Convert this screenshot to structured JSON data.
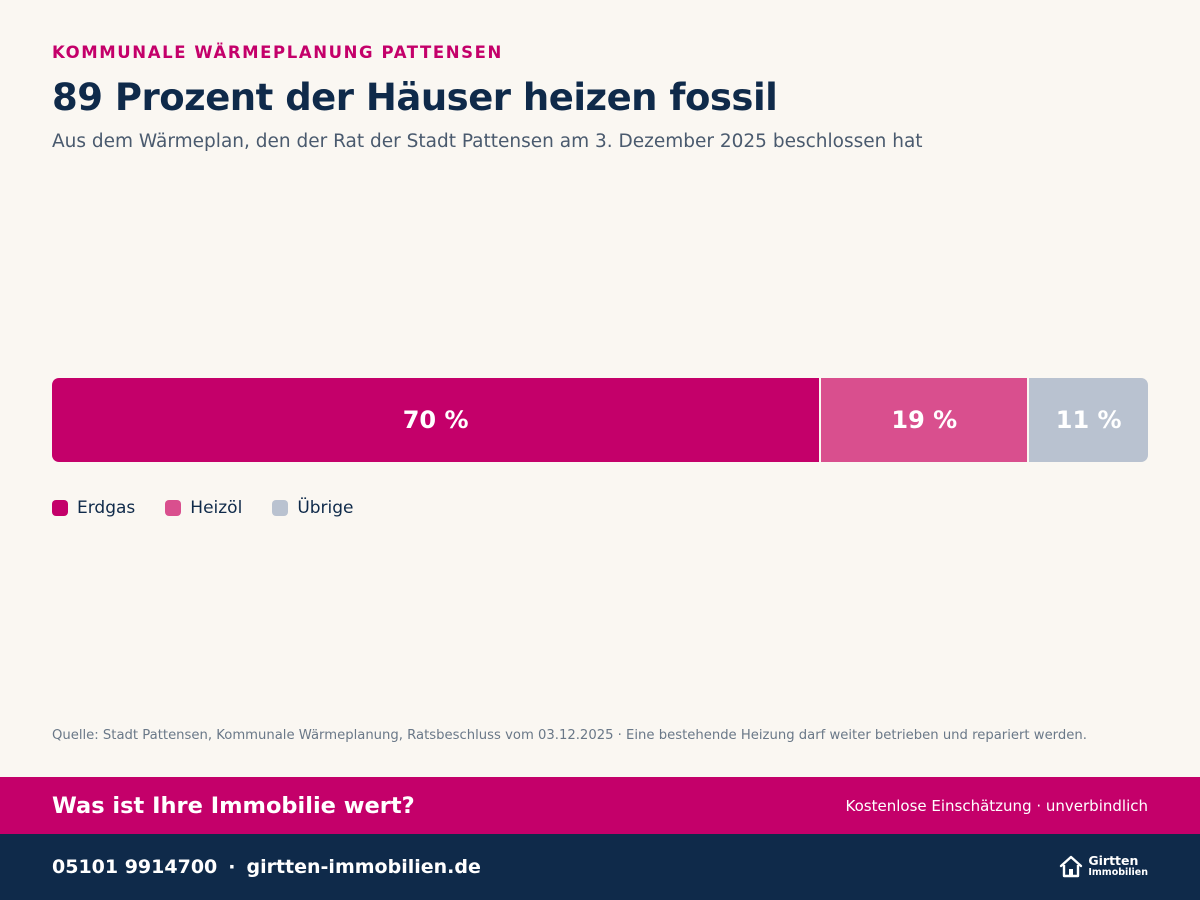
{
  "header": {
    "kicker": "KOMMUNALE WÄRMEPLANUNG PATTENSEN",
    "title": "89 Prozent der Häuser heizen fossil",
    "subtitle": "Aus dem Wärmeplan, den der Rat der Stadt Pattensen am 3. Dezember 2025 beschlossen hat"
  },
  "chart_data": {
    "type": "bar",
    "stacked": true,
    "orientation": "horizontal",
    "categories": [
      "Erdgas",
      "Heizöl",
      "Übrige"
    ],
    "values": [
      70,
      19,
      11
    ],
    "labels": [
      "70 %",
      "19 %",
      "11 %"
    ],
    "colors": [
      "#c4006a",
      "#d94f8e",
      "#b9c2d0"
    ],
    "legend": "bottom-left"
  },
  "source": "Quelle: Stadt Pattensen, Kommunale Wärmeplanung, Ratsbeschluss vom 03.12.2025 · Eine bestehende Heizung darf weiter betrieben und repariert werden.",
  "cta": {
    "title": "Was ist Ihre Immobilie wert?",
    "subtitle": "Kostenlose Einschätzung · unverbindlich"
  },
  "footer": {
    "phone": "05101 9914700",
    "separator": "·",
    "website": "girtten-immobilien.de",
    "logo_name": "Girtten",
    "logo_sub": "Immobilien",
    "logo_icon": "house-icon"
  }
}
